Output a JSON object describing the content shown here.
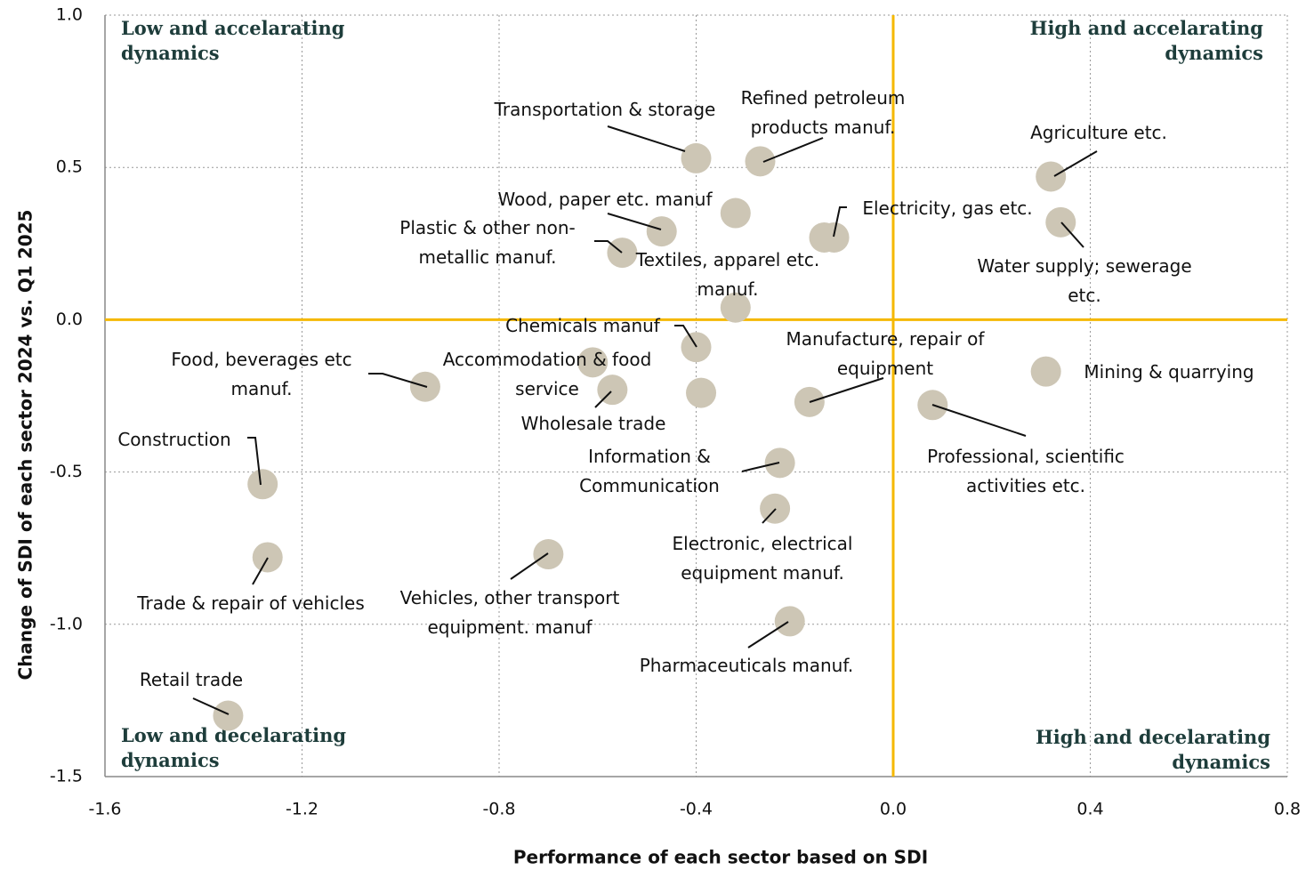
{
  "chart_data": {
    "type": "scatter",
    "xlabel": "Performance of each sector based on SDI",
    "ylabel": "Change of SDI of each sector 2024 vs. Q1 2025",
    "xlim": [
      -1.6,
      0.8
    ],
    "ylim": [
      -1.5,
      1.0
    ],
    "xticks": [
      -1.6,
      -1.2,
      -0.8,
      -0.4,
      {
        "value": 0,
        "label": "0.0"
      },
      0.4,
      0.8
    ],
    "yticks": [
      {
        "value": 1,
        "label": "1.0"
      },
      0.5,
      {
        "value": 0,
        "label": "0.0"
      },
      -0.5,
      {
        "value": -1,
        "label": "-1.0"
      },
      -1.5
    ],
    "grid": true,
    "color": "#cdc6b5",
    "reference_color": "#f5b800",
    "quadrants": [
      [
        "Low and accelarating",
        "dynamics"
      ],
      [
        "High and accelarating",
        "dynamics"
      ],
      [
        "Low and decelarating",
        "dynamics"
      ],
      [
        "High and decelarating",
        "dynamics"
      ]
    ],
    "labels": [
      [
        "Transportation & storage"
      ],
      [
        "Refined petroleum",
        "products manuf."
      ],
      [
        "Agriculture etc."
      ],
      [
        "Wood, paper etc. manuf"
      ],
      null,
      [
        "Electricity, gas etc."
      ],
      null,
      [
        "Water supply; sewerage",
        "etc."
      ],
      [
        "Plastic & other non-",
        "metallic manuf."
      ],
      [
        "Textiles, apparel etc.",
        "manuf."
      ],
      [
        "Chemicals manuf"
      ],
      [
        "Accommodation & food",
        "service"
      ],
      [
        "Wholesale trade"
      ],
      null,
      [
        "Food, beverages etc",
        "manuf."
      ],
      [
        "Manufacture, repair of",
        "equipment"
      ],
      [
        "Mining & quarrying"
      ],
      [
        "Professional, scientific",
        "activities etc."
      ],
      [
        "Information &",
        "Communication"
      ],
      [
        "Electronic, electrical",
        "equipment manuf."
      ],
      [
        "Construction"
      ],
      [
        "Trade & repair of vehicles"
      ],
      [
        "Vehicles, other transport",
        "equipment. manuf"
      ],
      [
        "Pharmaceuticals manuf."
      ],
      [
        "Retail trade"
      ]
    ],
    "x": [
      -0.4,
      -0.27,
      0.32,
      -0.47,
      -0.32,
      -0.12,
      -0.14,
      0.34,
      -0.55,
      -0.32,
      -0.4,
      -0.61,
      -0.57,
      -0.39,
      -0.95,
      -0.17,
      0.31,
      0.08,
      -0.23,
      -0.24,
      -1.28,
      -1.27,
      -0.7,
      -0.21,
      -1.35
    ],
    "y": [
      0.53,
      0.52,
      0.47,
      0.29,
      0.35,
      0.27,
      0.27,
      0.32,
      0.22,
      0.04,
      -0.09,
      -0.14,
      -0.23,
      -0.24,
      -0.22,
      -0.27,
      -0.17,
      -0.28,
      -0.47,
      -0.62,
      -0.54,
      -0.78,
      -0.77,
      -0.99,
      -1.3
    ]
  }
}
